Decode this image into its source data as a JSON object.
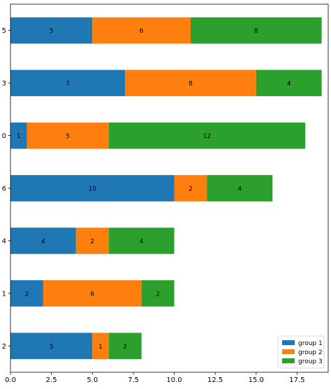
{
  "chart_data": {
    "type": "bar",
    "orientation": "horizontal",
    "stacked": true,
    "categories": [
      "2",
      "1",
      "4",
      "6",
      "0",
      "3",
      "5"
    ],
    "series": [
      {
        "name": "group 1",
        "color": "#1f77b4",
        "values": [
          5,
          2,
          4,
          10,
          1,
          7,
          5
        ]
      },
      {
        "name": "group 2",
        "color": "#ff7f0e",
        "values": [
          1,
          6,
          2,
          2,
          5,
          8,
          6
        ]
      },
      {
        "name": "group 3",
        "color": "#2ca02c",
        "values": [
          2,
          2,
          4,
          4,
          12,
          4,
          8
        ]
      }
    ],
    "x_ticks": [
      "0.0",
      "2.5",
      "5.0",
      "7.5",
      "10.0",
      "12.5",
      "15.0",
      "17.5"
    ],
    "xlim": [
      0,
      19.4
    ],
    "grid": false,
    "legend_position": "lower-right",
    "title": "",
    "xlabel": "",
    "ylabel": ""
  }
}
